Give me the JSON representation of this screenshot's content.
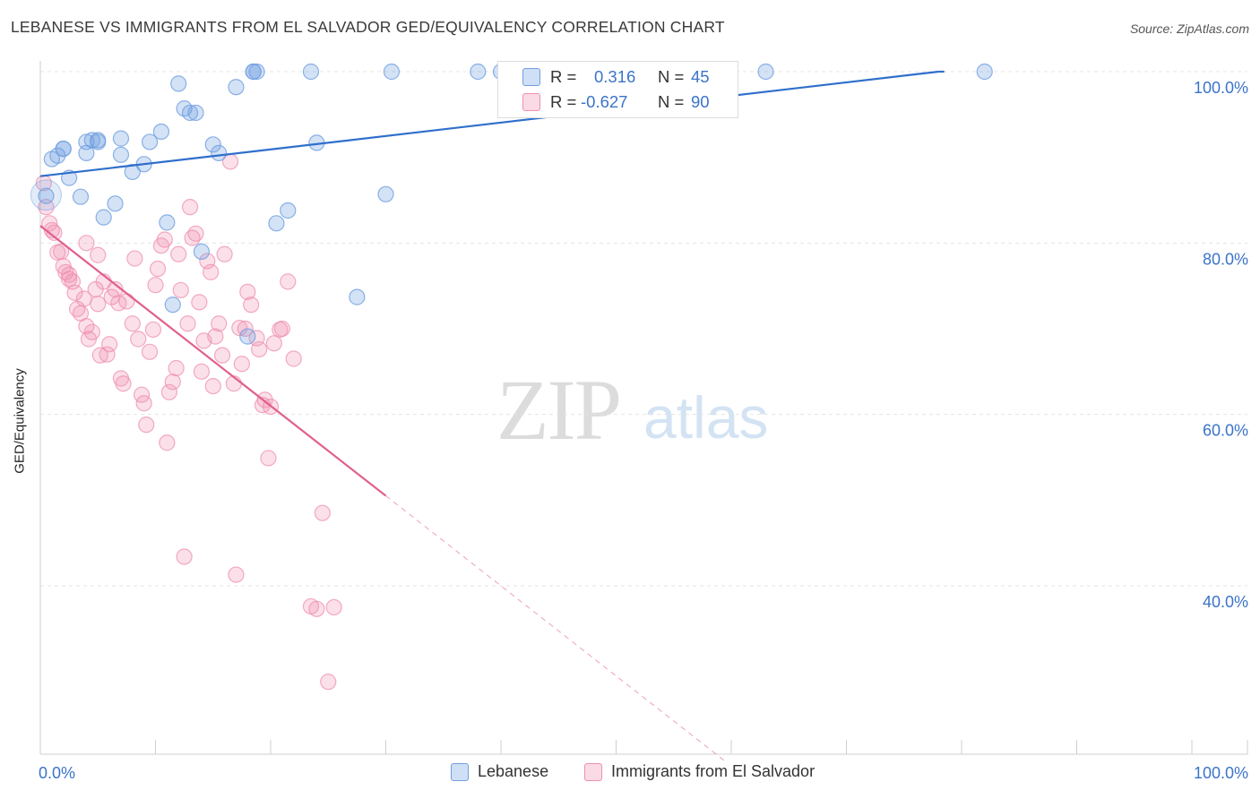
{
  "title": "LEBANESE VS IMMIGRANTS FROM EL SALVADOR GED/EQUIVALENCY CORRELATION CHART",
  "source": "Source: ZipAtlas.com",
  "watermark": {
    "zip": "ZIP",
    "atlas": "atlas"
  },
  "stats": {
    "row1": {
      "r_label": "R =",
      "r_value": "0.316",
      "n_label": "N =",
      "n_value": "45"
    },
    "row2": {
      "r_label": "R =",
      "r_value": "-0.627",
      "n_label": "N =",
      "n_value": "90"
    }
  },
  "legend": {
    "series1": "Lebanese",
    "series2": "Immigrants from El Salvador"
  },
  "chart_data": {
    "type": "scatter",
    "title": "LEBANESE VS IMMIGRANTS FROM EL SALVADOR GED/EQUIVALENCY CORRELATION CHART",
    "xlabel": "",
    "ylabel": "GED/Equivalency",
    "x_ticks": [
      "0.0%",
      "100.0%"
    ],
    "y_ticks": [
      "100.0%",
      "80.0%",
      "60.0%",
      "40.0%"
    ],
    "xlim": [
      0,
      100
    ],
    "ylim": [
      20,
      101
    ],
    "grid": true,
    "legend_position": "bottom",
    "colors": {
      "lebanese": "#6f9fe0",
      "lebanese_line": "#2f6fcc",
      "salvador": "#ef8fb0",
      "salvador_line": "#e0608f"
    },
    "series": [
      {
        "name": "Lebanese",
        "x": [
          0.5,
          1,
          1.5,
          2,
          2,
          2.5,
          3.5,
          4,
          4,
          4.5,
          5,
          5,
          5.5,
          6.5,
          7,
          7,
          8,
          9,
          9.5,
          10.5,
          11,
          11.5,
          12,
          12.5,
          13,
          13.5,
          14,
          15,
          15.5,
          17,
          18,
          18.5,
          18.5,
          18.8,
          20.5,
          21.5,
          23.5,
          24,
          27.5,
          30,
          30.5,
          38,
          40,
          63,
          82
        ],
        "y": [
          85.5,
          89.8,
          90.2,
          91,
          91,
          87.6,
          85.4,
          91.8,
          90.5,
          92,
          92,
          91.8,
          83.0,
          84.6,
          90.3,
          92.2,
          88.3,
          89.2,
          91.8,
          93.0,
          82.4,
          72.8,
          98.6,
          95.7,
          95.2,
          95.2,
          79.0,
          91.5,
          90.5,
          98.2,
          69.1,
          100,
          100,
          100,
          82.3,
          83.8,
          100,
          91.7,
          73.7,
          85.7,
          100,
          100,
          100,
          100,
          100
        ]
      },
      {
        "name": "Immigrants from El Salvador",
        "x": [
          0.3,
          0.5,
          0.8,
          1,
          1.2,
          1.5,
          1.8,
          2,
          2.2,
          2.5,
          2.5,
          2.8,
          3,
          3.2,
          3.5,
          3.8,
          4,
          4,
          4.2,
          4.5,
          4.8,
          5,
          5,
          5.2,
          5.5,
          5.8,
          6,
          6.2,
          6.5,
          6.8,
          7,
          7.2,
          7.5,
          8,
          8.2,
          8.5,
          8.8,
          9,
          9.2,
          9.5,
          9.8,
          10,
          10.2,
          10.5,
          10.8,
          11,
          11.2,
          11.5,
          11.8,
          12,
          12.2,
          12.5,
          12.8,
          13,
          13.2,
          13.5,
          13.8,
          14,
          14.2,
          14.5,
          14.8,
          15,
          15.2,
          15.5,
          15.8,
          16,
          16.5,
          16.8,
          17,
          17.3,
          17.5,
          17.8,
          18,
          18.3,
          18.8,
          19,
          19.3,
          19.5,
          19.8,
          20,
          20.3,
          20.8,
          21,
          21.5,
          22,
          23.5,
          24,
          24.5,
          25,
          25.5
        ],
        "y": [
          87,
          84.2,
          82.3,
          81.5,
          81.2,
          78.9,
          79.0,
          77.3,
          76.6,
          75.8,
          76.3,
          75.5,
          74.2,
          72.3,
          71.8,
          73.5,
          70.3,
          80.0,
          68.8,
          69.6,
          74.6,
          72.9,
          78.6,
          66.9,
          75.5,
          67.0,
          68.2,
          73.7,
          74.6,
          73.0,
          64.2,
          63.6,
          73.2,
          70.6,
          78.2,
          68.8,
          62.3,
          61.3,
          58.8,
          67.3,
          69.9,
          75.1,
          77.0,
          79.7,
          80.4,
          56.7,
          62.6,
          63.8,
          65.4,
          78.7,
          74.5,
          43.4,
          70.6,
          84.2,
          80.6,
          81.1,
          73.1,
          65.0,
          68.6,
          77.9,
          76.6,
          63.3,
          69.1,
          70.6,
          66.9,
          78.7,
          89.5,
          63.6,
          41.3,
          70.1,
          65.9,
          70.0,
          74.3,
          72.8,
          68.9,
          67.6,
          61.1,
          61.7,
          54.9,
          60.9,
          68.3,
          69.9,
          70.0,
          75.5,
          66.5,
          37.6,
          37.3,
          48.5,
          28.8,
          37.5
        ]
      }
    ],
    "trendlines": [
      {
        "series": "Lebanese",
        "x0": 0,
        "y0": 87.8,
        "x1": 78,
        "y1": 100.0
      },
      {
        "series": "Immigrants from El Salvador",
        "x0": 0,
        "y0": 82.0,
        "x1": 30,
        "y1": 50.5,
        "dashed_to_x": 59.5,
        "dashed_to_y": 19.5
      }
    ]
  }
}
